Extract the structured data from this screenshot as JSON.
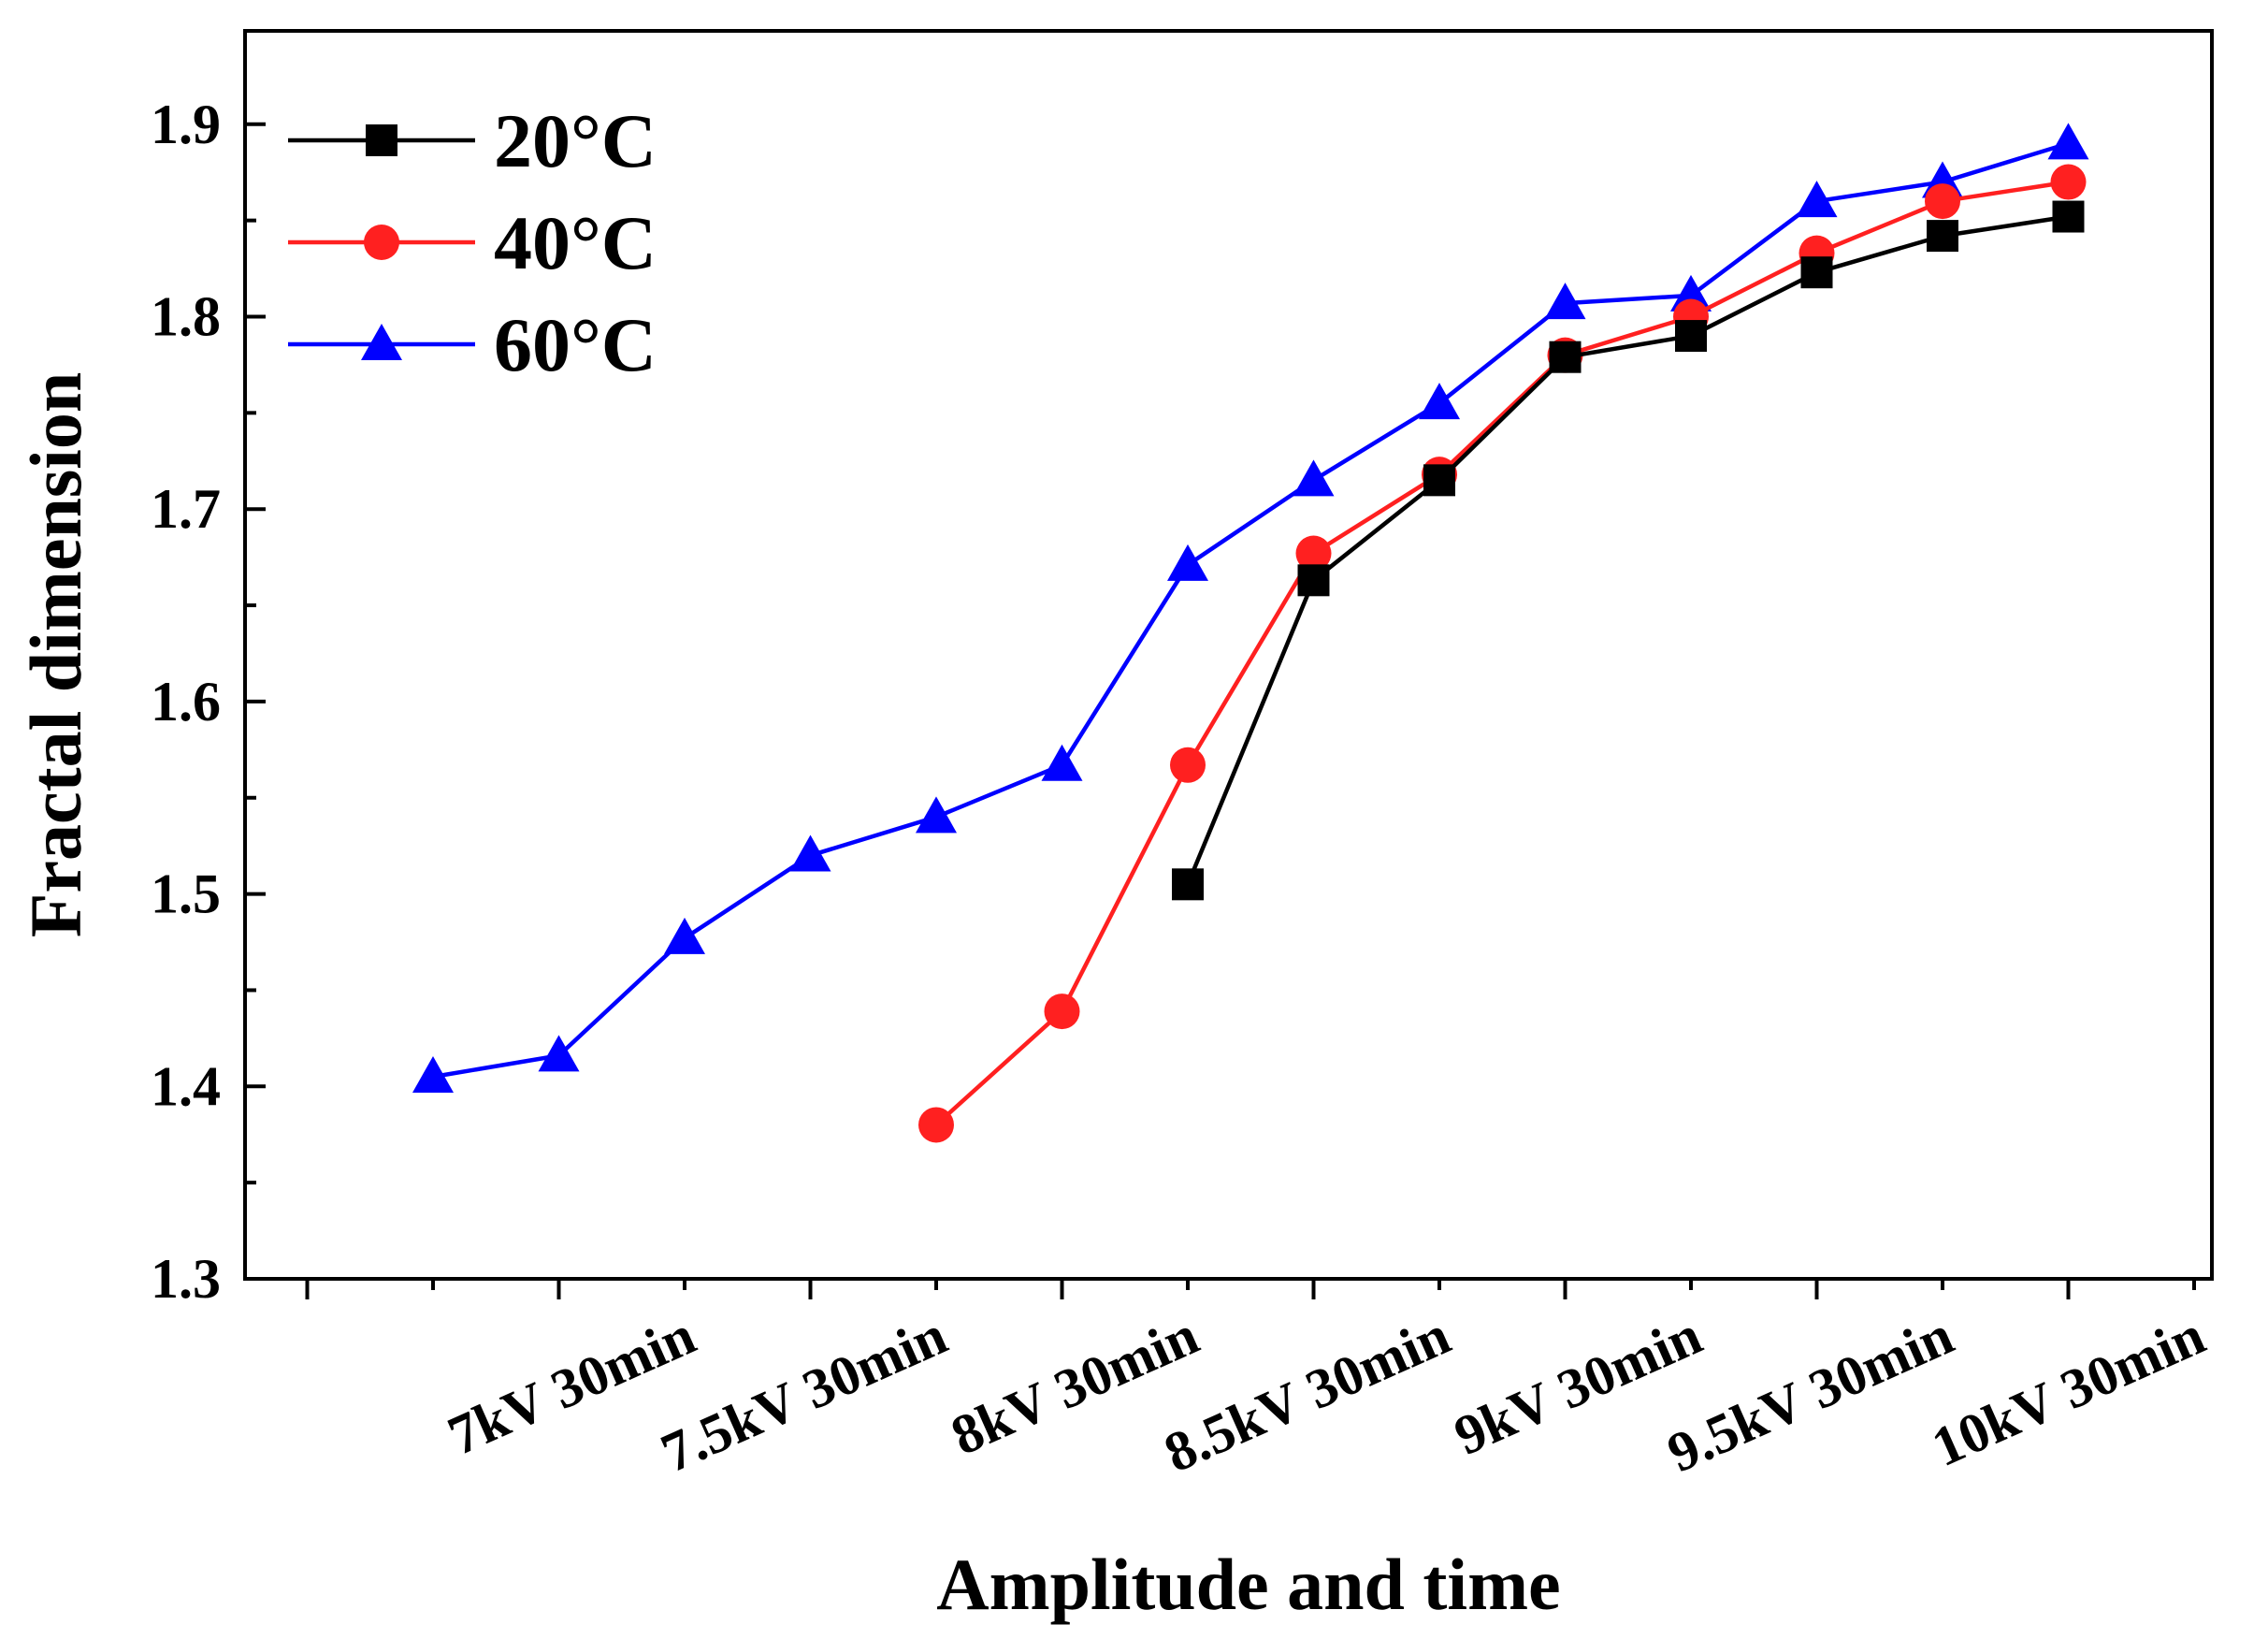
{
  "chart_data": {
    "type": "line",
    "title": "",
    "xlabel": "Amplitude and time",
    "ylabel": "Fractal dimension",
    "x_tick_labels": [
      "7kV 30min",
      "7.5kV 30min",
      "8kV 30min",
      "8.5kV 30min",
      "9kV 30min",
      "9.5kV 30min",
      "10kV 30min"
    ],
    "y_ticks": [
      "1.3",
      "1.4",
      "1.5",
      "1.6",
      "1.7",
      "1.8",
      "1.9"
    ],
    "ylim": [
      1.3,
      1.95
    ],
    "xlim": [
      0,
      15
    ],
    "grid": false,
    "legend_position": "top-left",
    "series": [
      {
        "name": "20°C",
        "color": "#000000",
        "marker": "square",
        "x": [
          7,
          8,
          9,
          10,
          11,
          12,
          13,
          14
        ],
        "values": [
          1.505,
          1.663,
          1.715,
          1.779,
          1.79,
          1.823,
          1.842,
          1.852
        ]
      },
      {
        "name": "40°C",
        "color": "#ff2020",
        "marker": "circle",
        "x": [
          5,
          6,
          7,
          8,
          9,
          10,
          11,
          12,
          13,
          14
        ],
        "values": [
          1.38,
          1.439,
          1.567,
          1.677,
          1.718,
          1.78,
          1.8,
          1.833,
          1.86,
          1.87
        ]
      },
      {
        "name": "60°C",
        "color": "#0000ff",
        "marker": "triangle",
        "x": [
          1,
          2,
          3,
          4,
          5,
          6,
          7,
          8,
          9,
          10,
          11,
          12,
          13,
          14
        ],
        "values": [
          1.405,
          1.416,
          1.477,
          1.52,
          1.54,
          1.567,
          1.671,
          1.715,
          1.755,
          1.807,
          1.811,
          1.86,
          1.87,
          1.89
        ]
      }
    ]
  }
}
